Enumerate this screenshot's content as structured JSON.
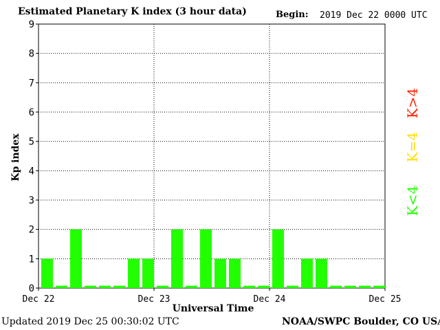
{
  "title": "Estimated Planetary K index (3 hour data)",
  "begin": {
    "label": "Begin:",
    "value": "2019 Dec 22 0000 UTC"
  },
  "footer": {
    "updated": "Updated 2019 Dec 25 00:30:02 UTC",
    "credit": "NOAA/SWPC Boulder, CO USA"
  },
  "legend": [
    {
      "label": "K>4",
      "color": "#ff2200"
    },
    {
      "label": "K=4",
      "color": "#ffdd00"
    },
    {
      "label": "K<4",
      "color": "#22ff00"
    }
  ],
  "chart_data": {
    "type": "bar",
    "xlabel": "Universal Time",
    "ylabel": "Kp index",
    "ylim": [
      0,
      9
    ],
    "yticks": [
      "0",
      "1",
      "2",
      "3",
      "4",
      "5",
      "6",
      "7",
      "8",
      "9"
    ],
    "xticks": [
      "Dec 22",
      "Dec 23",
      "Dec 24",
      "Dec 25"
    ],
    "grid": true,
    "bar_color": "#22ff00",
    "values": [
      1,
      0,
      2,
      0,
      0,
      0,
      1,
      1,
      0,
      2,
      0,
      2,
      1,
      1,
      0,
      0,
      2,
      0,
      1,
      1,
      0,
      0,
      0,
      0
    ]
  }
}
